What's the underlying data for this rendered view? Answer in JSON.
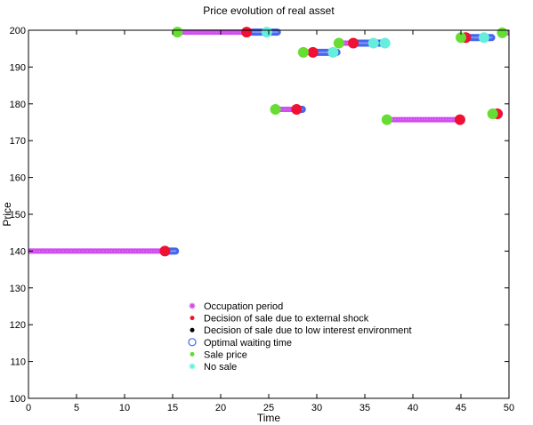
{
  "chart_data": {
    "type": "scatter",
    "title": "Price evolution of real asset",
    "xlabel": "Time",
    "ylabel": "Price",
    "xlim": [
      0,
      50
    ],
    "ylim": [
      100,
      200
    ],
    "xticks": [
      0,
      5,
      10,
      15,
      20,
      25,
      30,
      35,
      40,
      45,
      50
    ],
    "yticks": [
      100,
      110,
      120,
      130,
      140,
      150,
      160,
      170,
      180,
      190,
      200
    ],
    "grid": false,
    "legend_position": "center-left",
    "colors": {
      "occupation": "#cc44ee",
      "external_shock": "#ee1133",
      "low_interest": "#000000",
      "optimal_waiting": "#4466ee",
      "sale_price": "#66dd33",
      "no_sale": "#66eedd"
    },
    "legend": [
      {
        "key": "occupation",
        "label": "Occupation period",
        "marker": "asterisk"
      },
      {
        "key": "external_shock",
        "label": "Decision of sale due to external shock",
        "marker": "dot"
      },
      {
        "key": "low_interest",
        "label": "Decision of sale due to low interest environment",
        "marker": "dot"
      },
      {
        "key": "optimal_waiting",
        "label": "Optimal waiting time",
        "marker": "circle"
      },
      {
        "key": "sale_price",
        "label": "Sale price",
        "marker": "dot"
      },
      {
        "key": "no_sale",
        "label": "No sale",
        "marker": "asterisk"
      }
    ],
    "occupation_segments": [
      {
        "x0": 0,
        "x1": 14.2,
        "y": 140
      },
      {
        "x0": 15.4,
        "x1": 22.6,
        "y": 199.5
      },
      {
        "x0": 25.7,
        "x1": 27.9,
        "y": 178.5
      },
      {
        "x0": 28.6,
        "x1": 29.6,
        "y": 194
      },
      {
        "x0": 32.3,
        "x1": 33.8,
        "y": 196.5
      },
      {
        "x0": 37.3,
        "x1": 44.9,
        "y": 175.7
      },
      {
        "x0": 45.0,
        "x1": 45.4,
        "y": 198
      },
      {
        "x0": 48.3,
        "x1": 48.7,
        "y": 177.3
      },
      {
        "x0": 49.3,
        "x1": 50.0,
        "y": 199.3
      }
    ],
    "waiting_segments": [
      {
        "x0": 14.2,
        "x1": 15.3,
        "y": 140
      },
      {
        "x0": 22.6,
        "x1": 25.9,
        "y": 199.5
      },
      {
        "x0": 27.9,
        "x1": 28.5,
        "y": 178.5
      },
      {
        "x0": 29.6,
        "x1": 32.1,
        "y": 194
      },
      {
        "x0": 33.8,
        "x1": 37.2,
        "y": 196.5
      },
      {
        "x0": 45.4,
        "x1": 48.2,
        "y": 198
      },
      {
        "x0": 48.7,
        "x1": 49.0,
        "y": 177.3
      }
    ],
    "external_shock_points": [
      {
        "x": 14.2,
        "y": 140
      },
      {
        "x": 22.7,
        "y": 199.5
      },
      {
        "x": 27.9,
        "y": 178.5
      },
      {
        "x": 29.6,
        "y": 194
      },
      {
        "x": 33.8,
        "y": 196.5
      },
      {
        "x": 44.9,
        "y": 175.7
      },
      {
        "x": 45.5,
        "y": 198
      },
      {
        "x": 48.8,
        "y": 177.3
      }
    ],
    "sale_price_points": [
      {
        "x": 15.5,
        "y": 199.5
      },
      {
        "x": 25.7,
        "y": 178.5
      },
      {
        "x": 28.6,
        "y": 194
      },
      {
        "x": 32.3,
        "y": 196.5
      },
      {
        "x": 37.3,
        "y": 175.7
      },
      {
        "x": 45.0,
        "y": 198
      },
      {
        "x": 48.3,
        "y": 177.3
      },
      {
        "x": 49.3,
        "y": 199.3
      }
    ],
    "no_sale_points": [
      {
        "x": 24.8,
        "y": 199.5
      },
      {
        "x": 31.7,
        "y": 194
      },
      {
        "x": 35.9,
        "y": 196.5
      },
      {
        "x": 37.1,
        "y": 196.5
      },
      {
        "x": 47.4,
        "y": 198
      }
    ]
  }
}
